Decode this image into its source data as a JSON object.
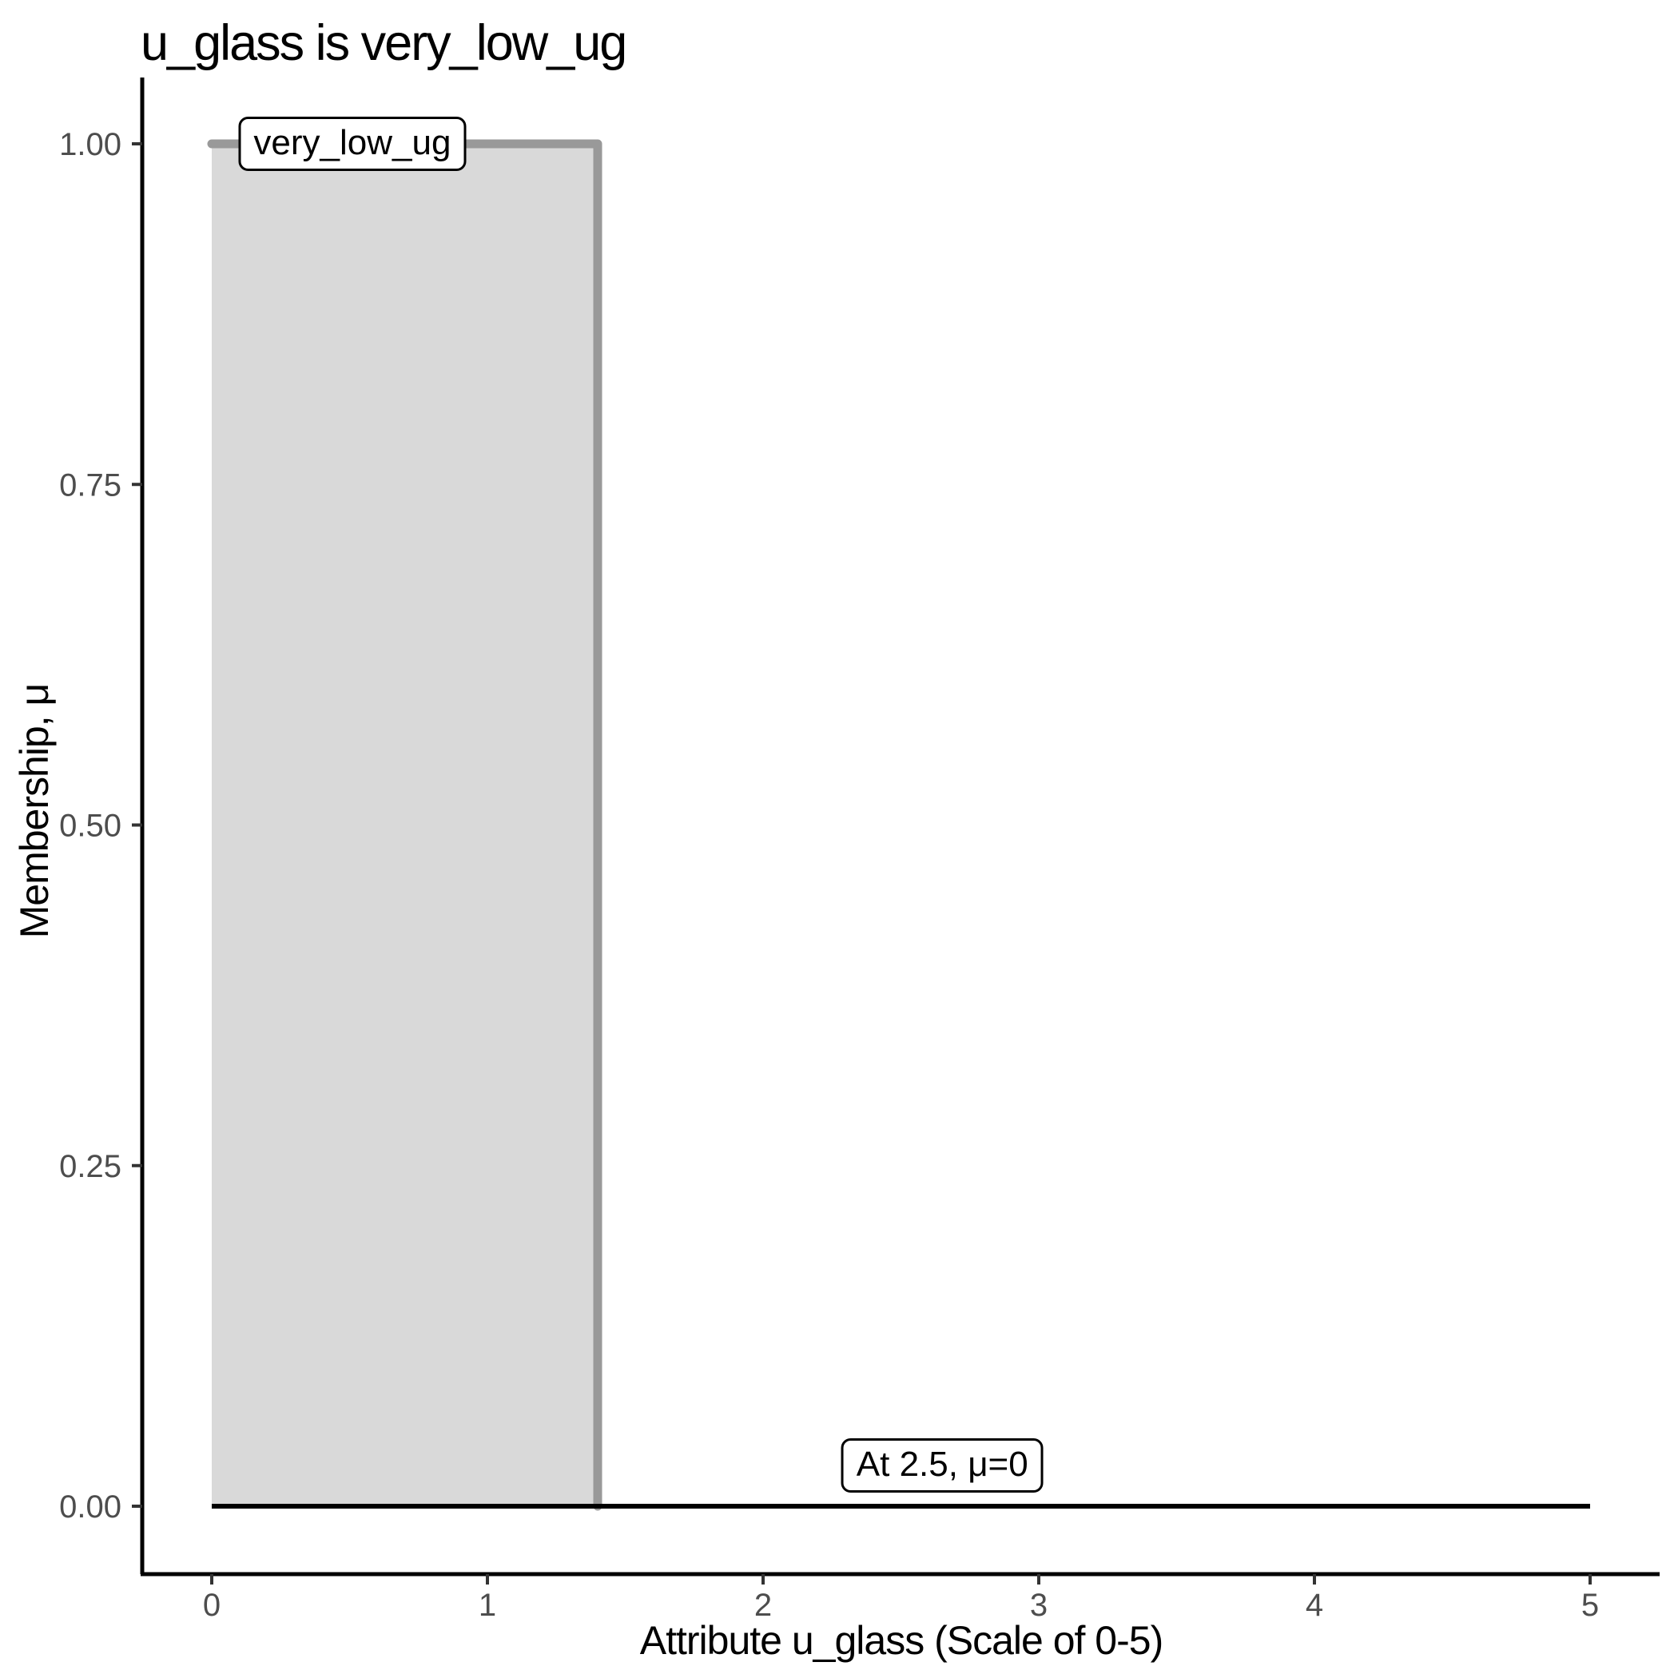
{
  "title": "u_glass is very_low_ug",
  "colors": {
    "background": "#ffffff",
    "membership_fill": "#d9d9d9",
    "membership_line": "#999999",
    "zero_line": "#000000",
    "axis_line": "#000000",
    "tick_mark": "#333333",
    "tick_label": "#4d4d4d",
    "text": "#000000",
    "annotation_bg": "#ffffff",
    "annotation_border": "#000000"
  },
  "chart_data": {
    "type": "area",
    "title": "u_glass is very_low_ug",
    "xlabel": "Attribute u_glass (Scale of 0-5)",
    "ylabel": "Membership, μ",
    "xlim": [
      0,
      5
    ],
    "ylim": [
      0,
      1
    ],
    "grid": false,
    "legend": false,
    "x_ticks": {
      "values": [
        0,
        1,
        2,
        3,
        4,
        5
      ],
      "labels": [
        "0",
        "1",
        "2",
        "3",
        "4",
        "5"
      ]
    },
    "y_ticks": {
      "values": [
        0,
        0.25,
        0.5,
        0.75,
        1
      ],
      "labels": [
        "0.00",
        "0.25",
        "0.50",
        "0.75",
        "1.00"
      ]
    },
    "series": [
      {
        "name": "very_low_ug",
        "points": [
          [
            0,
            1
          ],
          [
            1.4,
            1
          ],
          [
            1.4,
            0
          ]
        ],
        "filled_to_zero": true
      }
    ],
    "baseline": {
      "name": "zero-membership-line",
      "points": [
        [
          0,
          0
        ],
        [
          5,
          0
        ]
      ]
    },
    "annotations": [
      {
        "text": "very_low_ug",
        "x": 0.51,
        "y": 1.0
      },
      {
        "text": "At 2.5, μ=0",
        "x": 2.65,
        "y": 0.03
      }
    ]
  }
}
